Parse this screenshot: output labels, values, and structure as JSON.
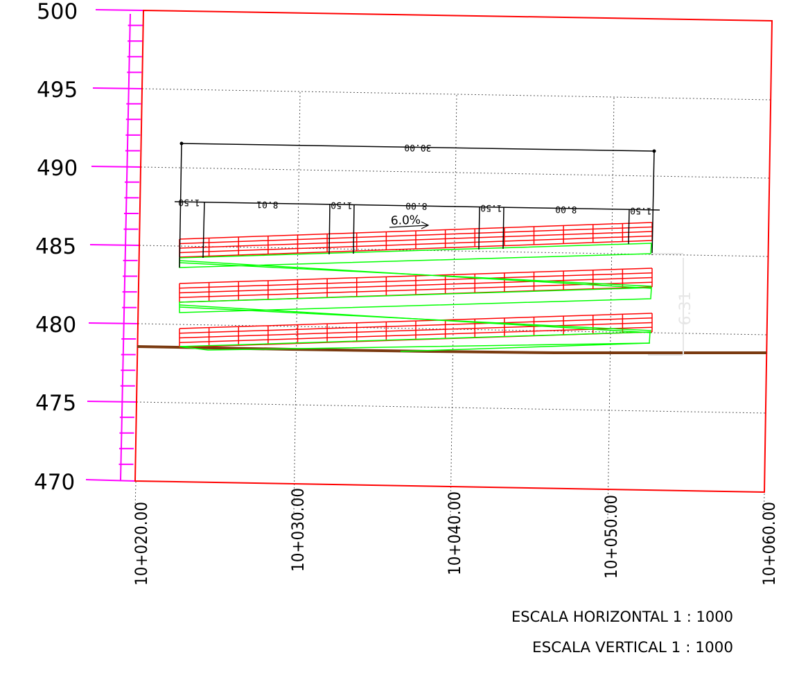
{
  "axis": {
    "y_labels": [
      "500",
      "495",
      "490",
      "485",
      "480",
      "475",
      "470"
    ],
    "x_labels": [
      "10+020.00",
      "10+030.00",
      "10+040.00",
      "10+050.00",
      "10+060.00"
    ]
  },
  "dimensions": {
    "total": "30.00",
    "segments": [
      "1.50",
      "8.01",
      "1.50",
      "8.00",
      "1.50",
      "8.00",
      "1.50"
    ],
    "slope": "6.0%",
    "side": "6.31"
  },
  "scales": {
    "horizontal": "ESCALA HORIZONTAL 1 : 1000",
    "vertical": "ESCALA VERTICAL 1 : 1000"
  },
  "colors": {
    "frame": "#ff0000",
    "axis": "#ff00ff",
    "deck": "#ff0000",
    "ramp": "#00ff00",
    "ground": "#7a3a10",
    "grid": "#555555"
  }
}
